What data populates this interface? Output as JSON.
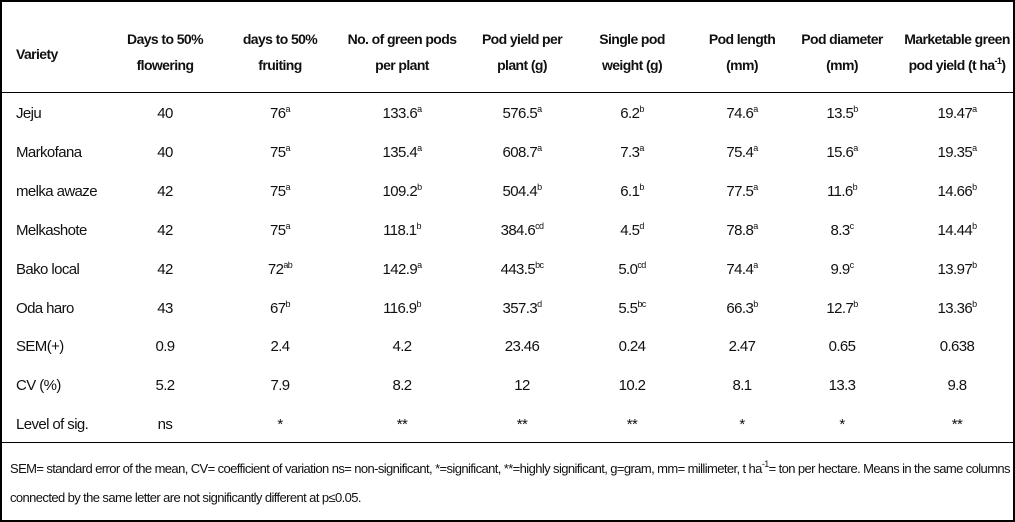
{
  "table": {
    "header": [
      [
        [
          "Variety"
        ]
      ],
      [
        [
          "Days to 50%"
        ],
        [
          "flowering"
        ]
      ],
      [
        [
          "days to 50%"
        ],
        [
          "fruiting"
        ]
      ],
      [
        [
          "No. of green pods"
        ],
        [
          "per plant"
        ]
      ],
      [
        [
          "Pod yield per"
        ],
        [
          "plant (g)"
        ]
      ],
      [
        [
          "Single pod"
        ],
        [
          "weight (g)"
        ]
      ],
      [
        [
          "Pod length"
        ],
        [
          "(mm)"
        ]
      ],
      [
        [
          "Pod diameter"
        ],
        [
          "(mm)"
        ]
      ],
      [
        [
          "Marketable green"
        ],
        [
          "pod yield (t ha",
          {
            "sup": "-1"
          },
          ")"
        ]
      ]
    ],
    "rows": [
      [
        [
          "Jeju"
        ],
        [
          "40"
        ],
        [
          "76",
          {
            "sup": "a"
          }
        ],
        [
          "133.6",
          {
            "sup": "a"
          }
        ],
        [
          "576.5",
          {
            "sup": "a"
          }
        ],
        [
          "6.2",
          {
            "sup": "b"
          }
        ],
        [
          "74.6",
          {
            "sup": "a"
          }
        ],
        [
          "13.5",
          {
            "sup": "b"
          }
        ],
        [
          "19.47",
          {
            "sup": "a"
          }
        ]
      ],
      [
        [
          "Markofana"
        ],
        [
          "40"
        ],
        [
          "75",
          {
            "sup": "a"
          }
        ],
        [
          "135.4",
          {
            "sup": "a"
          }
        ],
        [
          "608.7",
          {
            "sup": "a"
          }
        ],
        [
          "7.3",
          {
            "sup": "a"
          }
        ],
        [
          "75.4",
          {
            "sup": "a"
          }
        ],
        [
          "15.6",
          {
            "sup": "a"
          }
        ],
        [
          "19.35",
          {
            "sup": "a"
          }
        ]
      ],
      [
        [
          "melka awaze"
        ],
        [
          "42"
        ],
        [
          "75",
          {
            "sup": "a"
          }
        ],
        [
          "109.2",
          {
            "sup": "b"
          }
        ],
        [
          "504.4",
          {
            "sup": "b"
          }
        ],
        [
          "6.1",
          {
            "sup": "b"
          }
        ],
        [
          "77.5",
          {
            "sup": "a"
          }
        ],
        [
          "11.6",
          {
            "sup": "b"
          }
        ],
        [
          "14.66",
          {
            "sup": "b"
          }
        ]
      ],
      [
        [
          "Melkashote"
        ],
        [
          "42"
        ],
        [
          "75",
          {
            "sup": "a"
          }
        ],
        [
          "118.1",
          {
            "sup": "b"
          }
        ],
        [
          "384.6",
          {
            "sup": "cd"
          }
        ],
        [
          "4.5",
          {
            "sup": "d"
          }
        ],
        [
          "78.8",
          {
            "sup": "a"
          }
        ],
        [
          "8.3",
          {
            "sup": "c"
          }
        ],
        [
          "14.44",
          {
            "sup": "b"
          }
        ]
      ],
      [
        [
          "Bako local"
        ],
        [
          "42"
        ],
        [
          "72",
          {
            "sup": "ab"
          }
        ],
        [
          "142.9",
          {
            "sup": "a"
          }
        ],
        [
          "443.5",
          {
            "sup": "bc"
          }
        ],
        [
          "5.0",
          {
            "sup": "cd"
          }
        ],
        [
          "74.4",
          {
            "sup": "a"
          }
        ],
        [
          "9.9",
          {
            "sup": "c"
          }
        ],
        [
          "13.97",
          {
            "sup": "b"
          }
        ]
      ],
      [
        [
          "Oda haro"
        ],
        [
          "43"
        ],
        [
          "67",
          {
            "sup": "b"
          }
        ],
        [
          "116.9",
          {
            "sup": "b"
          }
        ],
        [
          "357.3",
          {
            "sup": "d"
          }
        ],
        [
          "5.5",
          {
            "sup": "bc"
          }
        ],
        [
          "66.3",
          {
            "sup": "b"
          }
        ],
        [
          "12.7",
          {
            "sup": "b"
          }
        ],
        [
          "13.36",
          {
            "sup": "b"
          }
        ]
      ],
      [
        [
          "SEM(+)"
        ],
        [
          "0.9"
        ],
        [
          "2.4"
        ],
        [
          "4.2"
        ],
        [
          "23.46"
        ],
        [
          "0.24"
        ],
        [
          "2.47"
        ],
        [
          "0.65"
        ],
        [
          "0.638"
        ]
      ],
      [
        [
          "CV (%)"
        ],
        [
          "5.2"
        ],
        [
          "7.9"
        ],
        [
          "8.2"
        ],
        [
          "12"
        ],
        [
          "10.2"
        ],
        [
          "8.1"
        ],
        [
          "13.3"
        ],
        [
          "9.8"
        ]
      ],
      [
        [
          "Level of sig."
        ],
        [
          "ns"
        ],
        [
          "*"
        ],
        [
          "**"
        ],
        [
          "**"
        ],
        [
          "**"
        ],
        [
          "*"
        ],
        [
          "*"
        ],
        [
          "**"
        ]
      ]
    ],
    "footnote": [
      [
        "SEM= standard error of the mean, CV= coefficient of variation ns= non-significant, *=significant, **=highly significant, g=gram, mm= millimeter, t ha",
        {
          "sup": "-1"
        },
        "= ton per hectare. Means in the same columns"
      ],
      [
        "connected by the same letter are not significantly different at p≤0.05."
      ]
    ]
  }
}
